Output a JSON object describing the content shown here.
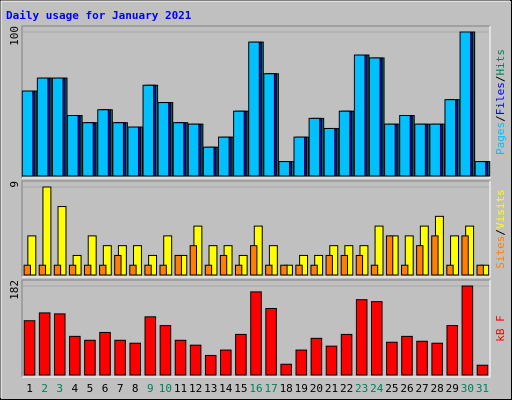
{
  "chart_data": {
    "type": "bar",
    "title": "Daily usage for January 2021",
    "categories": [
      "1",
      "2",
      "3",
      "4",
      "5",
      "6",
      "7",
      "8",
      "9",
      "10",
      "11",
      "12",
      "13",
      "14",
      "15",
      "16",
      "17",
      "18",
      "19",
      "20",
      "21",
      "22",
      "23",
      "24",
      "25",
      "26",
      "27",
      "28",
      "29",
      "30",
      "31"
    ],
    "category_colors": [
      "#000000",
      "#00805c",
      "#00805c",
      "#000000",
      "#000000",
      "#000000",
      "#000000",
      "#000000",
      "#00805c",
      "#00805c",
      "#000000",
      "#000000",
      "#000000",
      "#000000",
      "#000000",
      "#00805c",
      "#00805c",
      "#000000",
      "#000000",
      "#000000",
      "#000000",
      "#000000",
      "#00805c",
      "#00805c",
      "#000000",
      "#000000",
      "#000000",
      "#000000",
      "#000000",
      "#00805c",
      "#00805c"
    ],
    "separator": "/",
    "panels": [
      {
        "ylim": [
          0,
          100
        ],
        "yticks": [
          100
        ],
        "series": [
          {
            "name": "Pages",
            "color": "#00c0ff",
            "values": [
              59,
              68,
              68,
              42,
              37,
              46,
              37,
              34,
              63,
              51,
              37,
              36,
              20,
              27,
              45,
              93,
              71,
              10,
              27,
              40,
              33,
              45,
              84,
              82,
              36,
              42,
              36,
              36,
              53,
              100,
              10
            ]
          },
          {
            "name": "Files",
            "color": "#0000ff",
            "values": [
              59,
              68,
              68,
              42,
              37,
              46,
              37,
              34,
              63,
              51,
              37,
              36,
              20,
              27,
              45,
              93,
              71,
              10,
              27,
              40,
              33,
              45,
              84,
              82,
              36,
              42,
              36,
              36,
              53,
              100,
              10
            ]
          },
          {
            "name": "Hits",
            "color": "#00805c",
            "values": [
              59,
              68,
              68,
              42,
              37,
              46,
              37,
              34,
              63,
              51,
              37,
              36,
              20,
              27,
              45,
              93,
              71,
              10,
              27,
              40,
              33,
              45,
              84,
              82,
              36,
              42,
              36,
              36,
              53,
              100,
              10
            ]
          }
        ]
      },
      {
        "ylim": [
          0,
          9
        ],
        "yticks": [
          9
        ],
        "series": [
          {
            "name": "Sites",
            "color": "#ff8000",
            "values": [
              1,
              1,
              1,
              1,
              1,
              1,
              2,
              1,
              1,
              1,
              2,
              3,
              1,
              2,
              1,
              3,
              1,
              1,
              1,
              1,
              2,
              2,
              2,
              1,
              4,
              1,
              3,
              4,
              1,
              4,
              1
            ]
          },
          {
            "name": "Visits",
            "color": "#ffff00",
            "values": [
              4,
              9,
              7,
              2,
              4,
              3,
              3,
              3,
              2,
              4,
              2,
              5,
              3,
              3,
              2,
              5,
              3,
              1,
              2,
              2,
              3,
              3,
              3,
              5,
              4,
              4,
              5,
              6,
              4,
              5,
              1
            ]
          }
        ]
      },
      {
        "ylim": [
          0,
          182
        ],
        "yticks": [
          182
        ],
        "series": [
          {
            "name": "kB F",
            "color": "#ff0000",
            "values": [
              111,
              127,
              125,
              79,
              71,
              87,
              71,
              65,
              119,
              101,
              71,
              61,
              40,
              51,
              83,
              170,
              136,
              22,
              51,
              75,
              59,
              83,
              154,
              150,
              67,
              79,
              69,
              65,
              101,
              182,
              20
            ]
          }
        ]
      }
    ]
  }
}
